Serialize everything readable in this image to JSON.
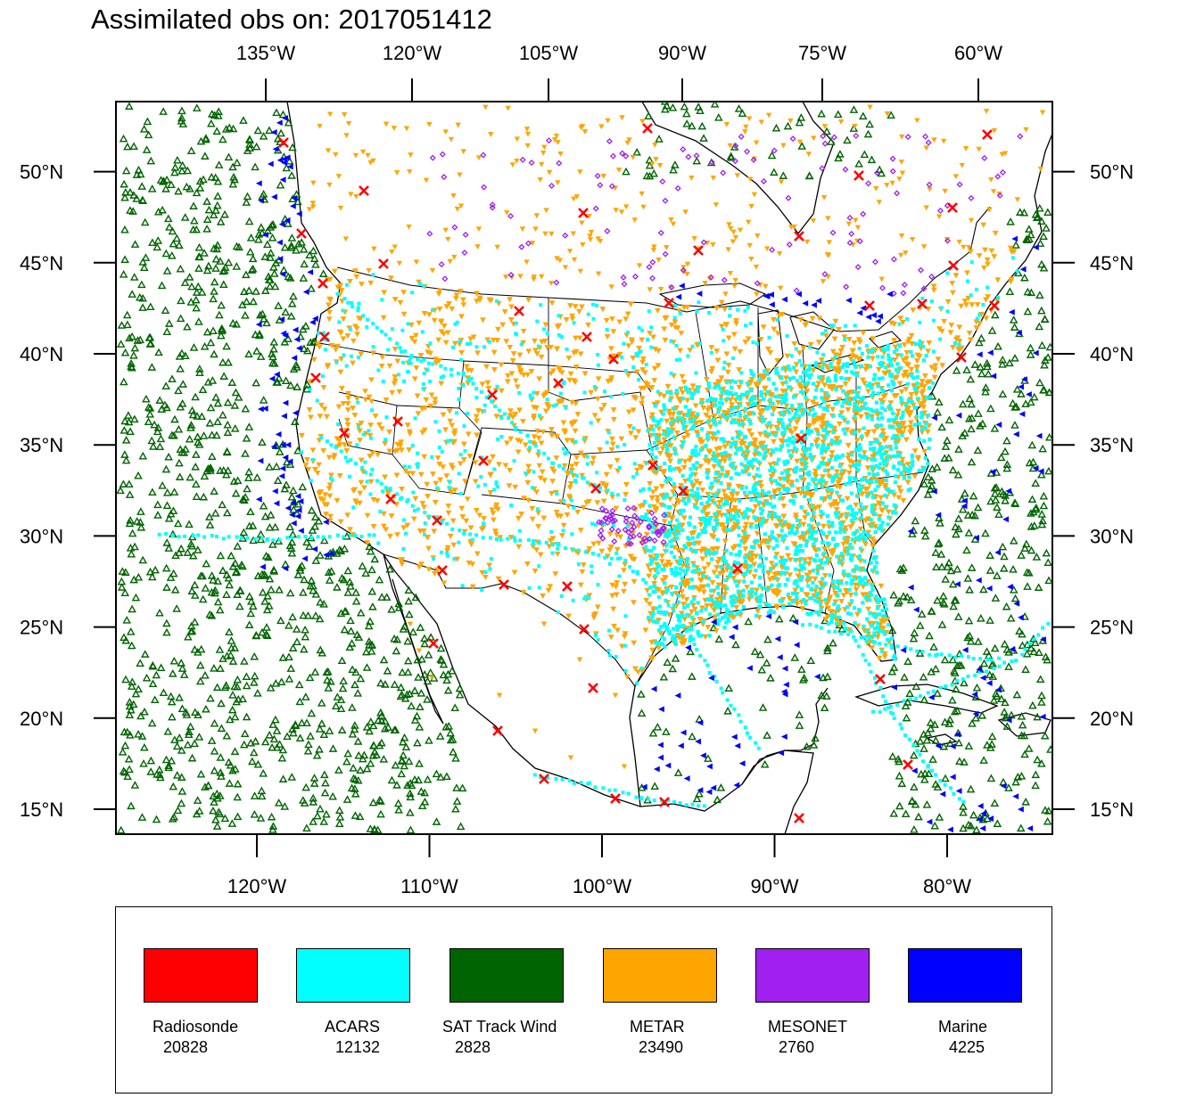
{
  "title": "Assimilated obs on: 2017051412",
  "map": {
    "top_lon_labels": [
      "135°W",
      "120°W",
      "105°W",
      "90°W",
      "75°W",
      "60°W"
    ],
    "bottom_lon_labels": [
      "120°W",
      "110°W",
      "100°W",
      "90°W",
      "80°W"
    ],
    "lat_labels": [
      "50°N",
      "45°N",
      "40°N",
      "35°N",
      "30°N",
      "25°N",
      "20°N",
      "15°N"
    ],
    "lat_values": [
      50,
      45,
      40,
      35,
      30,
      25,
      20,
      15
    ],
    "bottom_lon_values": [
      -120,
      -110,
      -100,
      -90,
      -80
    ],
    "top_lon_values": [
      -135,
      -120,
      -105,
      -90,
      -75,
      -60
    ],
    "extent": {
      "lon_min": -128.5,
      "lon_max": -74.5,
      "lat_min": 13.7,
      "lat_max": 53.7
    }
  },
  "legend": [
    {
      "name": "Radiosonde",
      "count": "20828",
      "color": "#ff0000",
      "marker": "x-cross"
    },
    {
      "name": "ACARS",
      "count": "12132",
      "color": "#00ffff",
      "marker": "square"
    },
    {
      "name": "SAT Track Wind",
      "count": "2828",
      "color": "#006400",
      "marker": "triangle-up"
    },
    {
      "name": "METAR",
      "count": "23490",
      "color": "#ffa500",
      "marker": "triangle-down"
    },
    {
      "name": "MESONET",
      "count": "2760",
      "color": "#a020f0",
      "marker": "diamond"
    },
    {
      "name": "Marine",
      "count": "4225",
      "color": "#0000ff",
      "marker": "triangle-left"
    }
  ]
}
